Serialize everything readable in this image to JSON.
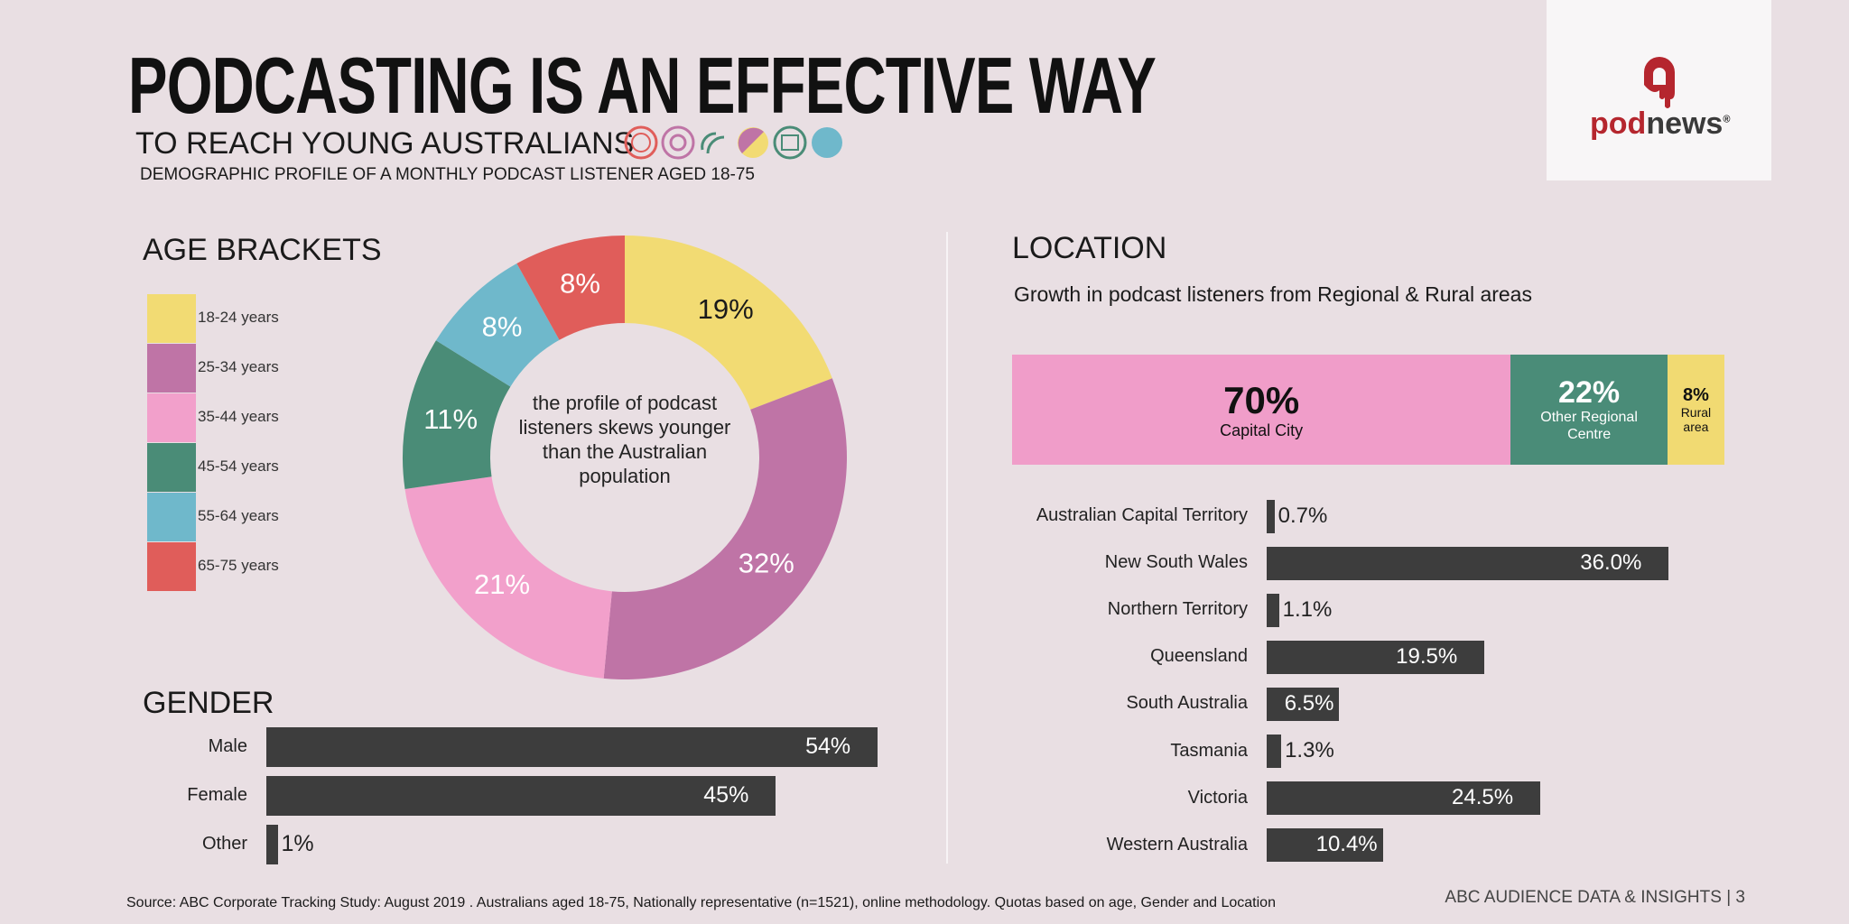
{
  "header": {
    "title": "PODCASTING IS AN EFFECTIVE WAY",
    "subtitle": "TO REACH YOUNG AUSTRALIANS",
    "description": "DEMOGRAPHIC PROFILE OF A MONTHLY PODCAST LISTENER AGED 18-75"
  },
  "logo": {
    "part1": "pod",
    "part2": "news"
  },
  "chart_data": [
    {
      "type": "donut",
      "title": "AGE BRACKETS",
      "categories": [
        "18-24 years",
        "25-34 years",
        "35-44 years",
        "45-54 years",
        "55-64 years",
        "65-75 years"
      ],
      "values": [
        19,
        32,
        21,
        11,
        8,
        8
      ],
      "value_labels": [
        "19%",
        "32%",
        "21%",
        "11%",
        "8%",
        "8%"
      ],
      "colors": [
        "#f2db73",
        "#bf74a6",
        "#f2a0cb",
        "#4a8c77",
        "#6fb8cb",
        "#e05d5a"
      ],
      "annotation": "the profile of podcast listeners skews younger than the Australian population"
    },
    {
      "type": "bar",
      "title": "GENDER",
      "categories": [
        "Male",
        "Female",
        "Other"
      ],
      "values": [
        54,
        45,
        1
      ],
      "value_labels": [
        "54%",
        "45%",
        "1%"
      ],
      "color": "#3d3d3d"
    },
    {
      "type": "stacked_bar",
      "title": "LOCATION",
      "subtitle": "Growth in podcast listeners from Regional & Rural areas",
      "categories": [
        "Capital City",
        "Other Regional Centre",
        "Rural area"
      ],
      "values": [
        70,
        22,
        8
      ],
      "value_labels": [
        "70%",
        "22%",
        "8%"
      ],
      "colors": [
        "#f09dc9",
        "#4a8c78",
        "#f1da72"
      ]
    },
    {
      "type": "bar",
      "categories": [
        "Australian Capital Territory",
        "New South Wales",
        "Northern Territory",
        "Queensland",
        "South Australia",
        "Tasmania",
        "Victoria",
        "Western Australia"
      ],
      "values": [
        0.7,
        36.0,
        1.1,
        19.5,
        6.5,
        1.3,
        24.5,
        10.4
      ],
      "value_labels": [
        "0.7%",
        "36.0%",
        "1.1%",
        "19.5%",
        "6.5%",
        "1.3%",
        "24.5%",
        "10.4%"
      ],
      "color": "#3d3d3d"
    }
  ],
  "footer": {
    "source": "Source: ABC Corporate Tracking Study: August 2019 . Australians aged 18-75, Nationally representative (n=1521), online methodology. Quotas based on age, Gender and Location",
    "page": "ABC AUDIENCE DATA & INSIGHTS | 3"
  }
}
